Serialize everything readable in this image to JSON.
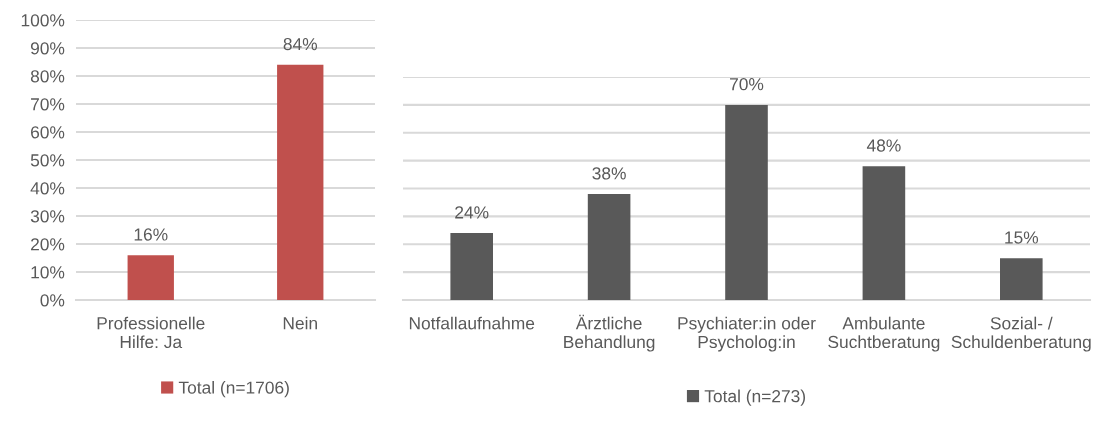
{
  "chart_data": [
    {
      "type": "bar",
      "categories": [
        "Professionelle\nHilfe: Ja",
        "Nein"
      ],
      "series": [
        {
          "name": "Total (n=1706)",
          "color": "#c0504d",
          "values": [
            16,
            84
          ],
          "value_labels": [
            "16%",
            "84%"
          ]
        }
      ],
      "ylim": [
        0,
        100
      ],
      "yticks": [
        {
          "value": 0,
          "label": "0%"
        },
        {
          "value": 10,
          "label": "10%"
        },
        {
          "value": 20,
          "label": "20%"
        },
        {
          "value": 30,
          "label": "30%"
        },
        {
          "value": 40,
          "label": "40%"
        },
        {
          "value": 50,
          "label": "50%"
        },
        {
          "value": 60,
          "label": "60%"
        },
        {
          "value": 70,
          "label": "70%"
        },
        {
          "value": 80,
          "label": "80%"
        },
        {
          "value": 90,
          "label": "90%"
        },
        {
          "value": 100,
          "label": "100%"
        }
      ],
      "grid": "y",
      "legend": "bottom"
    },
    {
      "type": "bar",
      "categories": [
        "Notfallaufnahme",
        "Ärztliche\nBehandlung",
        "Psychiater:in oder\nPsycholog:in",
        "Ambulante\nSuchtberatung",
        "Sozial- /\nSchuldenberatung"
      ],
      "series": [
        {
          "name": "Total (n=273)",
          "color": "#595959",
          "values": [
            24,
            38,
            70,
            48,
            15
          ],
          "value_labels": [
            "24%",
            "38%",
            "70%",
            "48%",
            "15%"
          ]
        }
      ],
      "ylim": [
        0,
        80
      ],
      "yticks": [
        0,
        10,
        20,
        30,
        40,
        50,
        60,
        70,
        80
      ],
      "tick_labels": "x",
      "grid": "y",
      "legend": "bottom"
    }
  ]
}
